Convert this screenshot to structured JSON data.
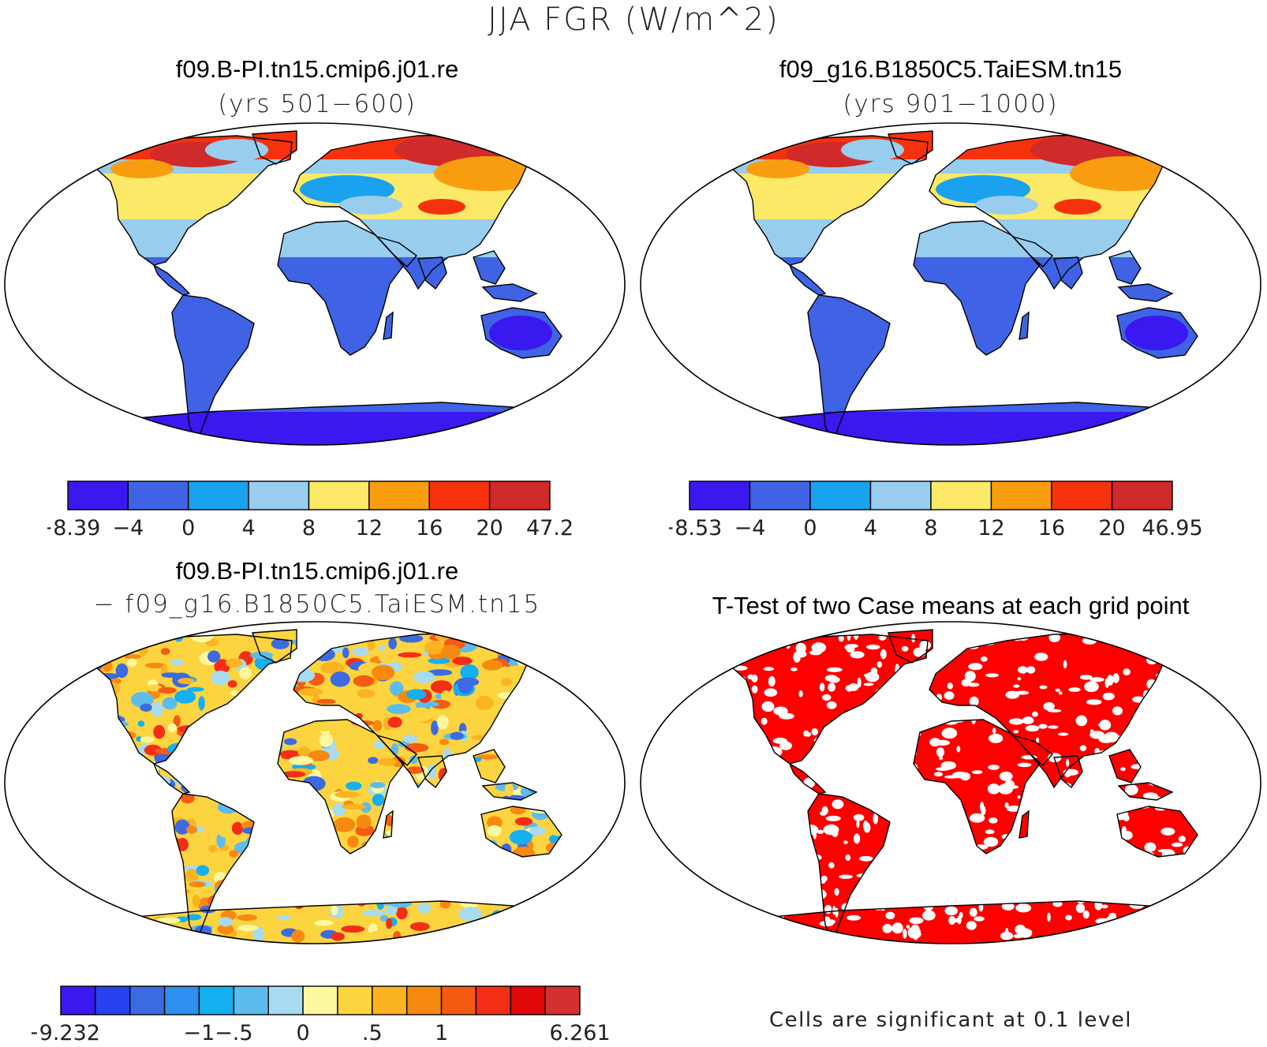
{
  "title": "JJA FGR (W/m^2)",
  "panels": [
    {
      "id": "case1",
      "title": "f09.B-PI.tn15.cmip6.j01.re",
      "subtitle": "(yrs 501−600)",
      "colorbar": {
        "colors": [
          "#3a18f0",
          "#3f63e4",
          "#1aa2ee",
          "#98cdee",
          "#fbe967",
          "#f99d10",
          "#f6320e",
          "#d02a2a"
        ],
        "tick_labels": [
          "−8.39",
          "−4",
          "0",
          "4",
          "8",
          "12",
          "16",
          "20",
          "47.2"
        ]
      }
    },
    {
      "id": "case2",
      "title": "f09_g16.B1850C5.TaiESM.tn15",
      "subtitle": "(yrs 901−1000)",
      "colorbar": {
        "colors": [
          "#3a18f0",
          "#3f63e4",
          "#1aa2ee",
          "#98cdee",
          "#fbe967",
          "#f99d10",
          "#f6320e",
          "#d02a2a"
        ],
        "tick_labels": [
          "−8.53",
          "−4",
          "0",
          "4",
          "8",
          "12",
          "16",
          "20",
          "46.95"
        ]
      }
    },
    {
      "id": "diff",
      "title": "f09.B-PI.tn15.cmip6.j01.re",
      "subtitle": "− f09_g16.B1850C5.TaiESM.tn15",
      "colorbar": {
        "colors": [
          "#3a18f0",
          "#2642ee",
          "#3c6ae2",
          "#2e8fee",
          "#14b0f0",
          "#5cbcec",
          "#a6dbf2",
          "#fdf8a0",
          "#fcd440",
          "#fbb320",
          "#f88910",
          "#f55b12",
          "#f42e14",
          "#e0070a",
          "#d43030"
        ],
        "tick_labels": [
          "−9.232",
          "−1",
          "−.5",
          "0",
          ".5",
          "1",
          "6.261"
        ]
      }
    },
    {
      "id": "ttest",
      "title": "T-Test of two Case means at each grid point",
      "note": "Cells are significant at 0.1 level",
      "sig_color": "#ff0000"
    }
  ],
  "map_colors": {
    "ocean": "#ffffff",
    "coast": "#000000"
  }
}
